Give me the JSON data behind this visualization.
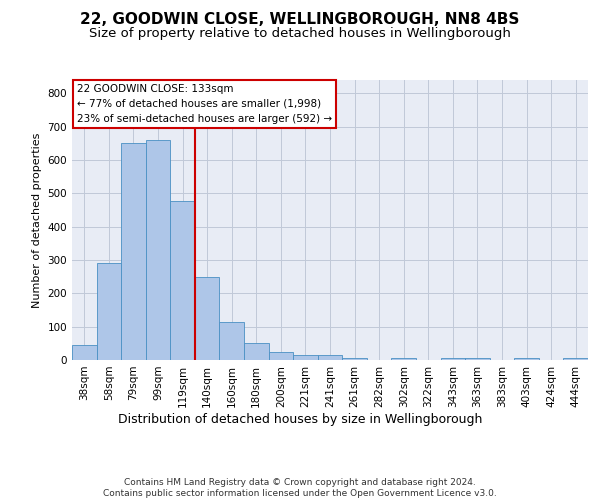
{
  "title1": "22, GOODWIN CLOSE, WELLINGBOROUGH, NN8 4BS",
  "title2": "Size of property relative to detached houses in Wellingborough",
  "xlabel": "Distribution of detached houses by size in Wellingborough",
  "ylabel": "Number of detached properties",
  "categories": [
    "38sqm",
    "58sqm",
    "79sqm",
    "99sqm",
    "119sqm",
    "140sqm",
    "160sqm",
    "180sqm",
    "200sqm",
    "221sqm",
    "241sqm",
    "261sqm",
    "282sqm",
    "302sqm",
    "322sqm",
    "343sqm",
    "363sqm",
    "383sqm",
    "403sqm",
    "424sqm",
    "444sqm"
  ],
  "values": [
    45,
    292,
    652,
    660,
    478,
    250,
    113,
    50,
    25,
    14,
    14,
    7,
    0,
    7,
    0,
    7,
    7,
    0,
    7,
    0,
    7
  ],
  "bar_color": "#aec6e8",
  "bar_edge_color": "#4a90c4",
  "vline_x": 4.5,
  "vline_color": "#cc0000",
  "annotation_line1": "22 GOODWIN CLOSE: 133sqm",
  "annotation_line2": "← 77% of detached houses are smaller (1,998)",
  "annotation_line3": "23% of semi-detached houses are larger (592) →",
  "annotation_box_color": "#cc0000",
  "ylim": [
    0,
    840
  ],
  "yticks": [
    0,
    100,
    200,
    300,
    400,
    500,
    600,
    700,
    800
  ],
  "grid_color": "#c0c8d8",
  "bg_color": "#e8ecf5",
  "footer": "Contains HM Land Registry data © Crown copyright and database right 2024.\nContains public sector information licensed under the Open Government Licence v3.0.",
  "title1_fontsize": 11,
  "title2_fontsize": 9.5,
  "xlabel_fontsize": 9,
  "ylabel_fontsize": 8,
  "tick_fontsize": 7.5,
  "footer_fontsize": 6.5,
  "annot_fontsize": 7.5
}
